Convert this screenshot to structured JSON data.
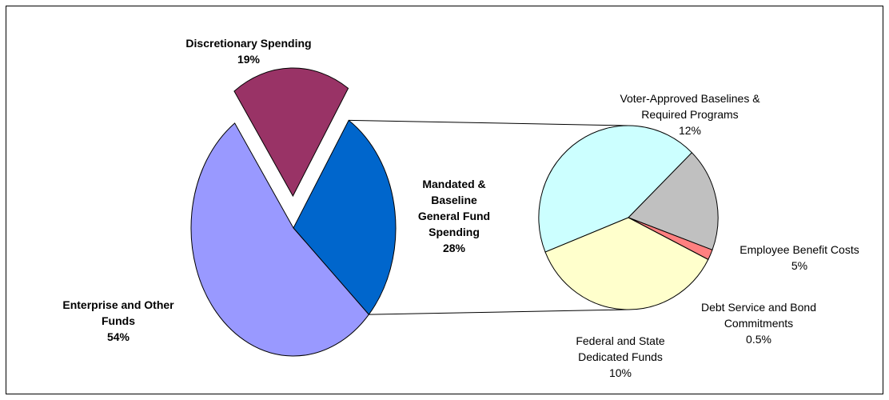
{
  "chart_data": {
    "type": "bar-of-pie",
    "main_pie": [
      {
        "label_lines": [
          "Discretionary Spending"
        ],
        "percent_label": "19%",
        "value": 19,
        "color": "#993366",
        "exploded": true
      },
      {
        "label_lines": [
          "Mandated &",
          "Baseline",
          "General Fund",
          "Spending"
        ],
        "percent_label": "28%",
        "value": 28,
        "color": "#0066CC",
        "exploded": false
      },
      {
        "label_lines": [
          "Enterprise and Other",
          "Funds"
        ],
        "percent_label": "54%",
        "value": 54,
        "color": "#9999FF",
        "exploded": false
      }
    ],
    "secondary_pie": [
      {
        "label_lines": [
          "Voter-Approved Baselines &",
          "Required Programs"
        ],
        "percent_label": "12%",
        "value": 12,
        "color": "#CCFFFF"
      },
      {
        "label_lines": [
          "Employee Benefit Costs"
        ],
        "percent_label": "5%",
        "value": 5,
        "color": "#C0C0C0"
      },
      {
        "label_lines": [
          "Debt Service and Bond",
          "Commitments"
        ],
        "percent_label": "0.5%",
        "value": 0.5,
        "color": "#FF8080"
      },
      {
        "label_lines": [
          "Federal and State",
          "Dedicated Funds"
        ],
        "percent_label": "10%",
        "value": 10,
        "color": "#FFFFCC"
      }
    ]
  }
}
